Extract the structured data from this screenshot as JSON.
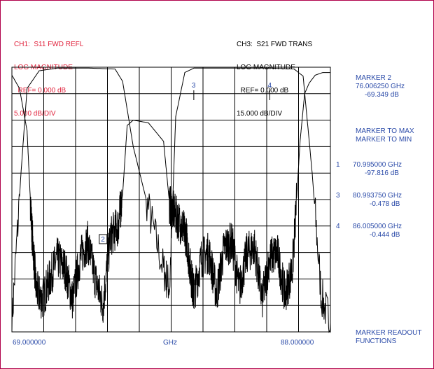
{
  "ch1": {
    "line1": "CH1:  S11 FWD REFL",
    "line2": "LOG MAGNITUDE",
    "line3": "  REF= 0.000 dB",
    "line4": "5.000 dB/DIV",
    "color": "#e0203a"
  },
  "ch3": {
    "line1": "CH3:  S21 FWD TRANS",
    "line2": "LOG MAGNITUDE",
    "line3": "  REF= 0.000 dB",
    "line4": "15.000 dB/DIV",
    "color": "#000000"
  },
  "side": {
    "active_marker_title": "MARKER 2",
    "active_marker_freq": "76.006250 GHz",
    "active_marker_value": "-69.349 dB",
    "func1": "MARKER TO MAX",
    "func2": "MARKER TO MIN",
    "markers": [
      {
        "num": "1",
        "freq": "70.995000 GHz",
        "value": "-97.816 dB"
      },
      {
        "num": "3",
        "freq": "80.993750 GHz",
        "value": "-0.478 dB"
      },
      {
        "num": "4",
        "freq": "86.005000 GHz",
        "value": "-0.444 dB"
      }
    ],
    "readout1": "MARKER READOUT",
    "readout2": "FUNCTIONS"
  },
  "axis": {
    "start": "69.000000",
    "unit": "GHz",
    "stop": "88.000000"
  },
  "markers_on_plot": [
    {
      "label": "2",
      "x": 76.006,
      "color": "#2a4aa8"
    },
    {
      "label": "3",
      "x": 80.994,
      "color": "#2a4aa8"
    },
    {
      "label": "4",
      "x": 86.005,
      "color": "#2a4aa8"
    }
  ],
  "chart_data": {
    "type": "line",
    "xlim": [
      69.0,
      90.0
    ],
    "grid": true,
    "divisions_x": 10,
    "divisions_y": 10,
    "series": [
      {
        "name": "S21 FWD TRANS",
        "color": "#000000",
        "scale_db_per_div": 15,
        "ref_db": 0,
        "x": [
          69.0,
          69.6,
          70.0,
          70.8,
          72.0,
          74.0,
          75.8,
          76.3,
          77.0,
          78.0,
          79.0,
          79.4,
          79.8,
          80.4,
          81.0,
          84.0,
          86.0,
          87.6,
          88.2,
          88.8,
          89.4,
          90.0
        ],
        "y": [
          -145,
          -60,
          -12,
          -2,
          -0.5,
          -0.5,
          -1,
          -8,
          -45,
          -80,
          -115,
          -125,
          -28,
          -3,
          -0.5,
          -0.5,
          -0.5,
          -1,
          -5,
          -60,
          -130,
          -145
        ]
      },
      {
        "name": "S11 FWD REFL",
        "color": "#000000",
        "scale_db_per_div": 5,
        "ref_db": 0,
        "x": [
          69.0,
          69.5,
          70.0,
          70.3,
          70.6,
          71.0,
          71.5,
          72.0,
          72.5,
          73.0,
          73.5,
          74.0,
          74.5,
          75.0,
          75.5,
          76.0,
          76.3,
          76.6,
          77.0,
          78.0,
          79.0,
          79.4,
          79.8,
          80.2,
          80.5,
          80.8,
          81.0,
          81.5,
          82.0,
          82.5,
          83.0,
          83.5,
          84.0,
          84.5,
          85.0,
          85.5,
          86.0,
          86.5,
          87.0,
          87.5,
          88.0,
          88.3,
          88.6,
          89.0,
          89.5,
          90.0
        ],
        "y": [
          -1.5,
          -4,
          -12,
          -30,
          -42,
          -44,
          -40,
          -36,
          -38,
          -44,
          -36,
          -33,
          -40,
          -45,
          -32,
          -30,
          -24,
          -11,
          -10,
          -10.5,
          -14,
          -26,
          -28,
          -30,
          -32,
          -39,
          -43,
          -36,
          -35,
          -43,
          -34,
          -33,
          -42,
          -35,
          -34,
          -44,
          -36,
          -35,
          -43,
          -38,
          -14,
          -5,
          -3,
          -1.5,
          -1,
          -1
        ]
      }
    ]
  }
}
